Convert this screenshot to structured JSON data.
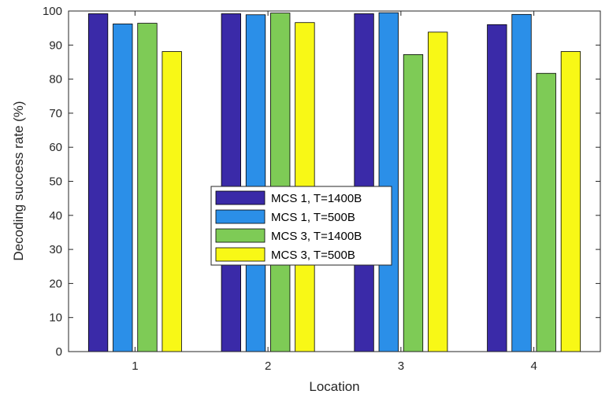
{
  "chart_data": {
    "type": "bar",
    "xlabel": "Location",
    "ylabel": "Decoding success rate (%)",
    "ylim": [
      0,
      100
    ],
    "yticks": [
      0,
      10,
      20,
      30,
      40,
      50,
      60,
      70,
      80,
      90,
      100
    ],
    "categories": [
      "1",
      "2",
      "3",
      "4"
    ],
    "series": [
      {
        "name": "MCS 1, T=1400B",
        "color": "#3a2aa8",
        "values": [
          99.2,
          99.2,
          99.2,
          96.0
        ]
      },
      {
        "name": "MCS 1, T=500B",
        "color": "#2b8fe8",
        "values": [
          96.2,
          98.9,
          99.5,
          99.0
        ]
      },
      {
        "name": "MCS 3, T=1400B",
        "color": "#7ecb56",
        "values": [
          96.4,
          99.4,
          87.2,
          81.7
        ]
      },
      {
        "name": "MCS 3, T=500B",
        "color": "#f8f816",
        "values": [
          88.1,
          96.6,
          93.8,
          88.1
        ]
      }
    ],
    "grid": false,
    "legend_position": "center-left"
  }
}
